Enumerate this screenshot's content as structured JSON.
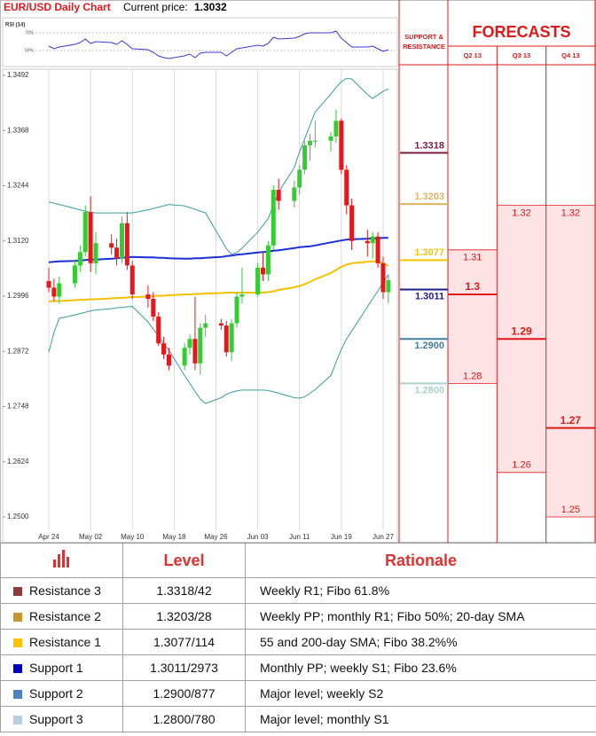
{
  "header": {
    "title": "EUR/USD Daily Chart",
    "price_label": "Current price:",
    "price": 1.3032
  },
  "chart_data": [
    {
      "type": "candlestick",
      "x": [
        "Apr 24",
        "Apr 25",
        "Apr 26",
        "Apr 29",
        "Apr 30",
        "May 01",
        "May 02",
        "May 03",
        "May 06",
        "May 07",
        "May 08",
        "May 09",
        "May 10",
        "May 13",
        "May 14",
        "May 15",
        "May 16",
        "May 17",
        "May 20",
        "May 21",
        "May 22",
        "May 23",
        "May 24",
        "May 27",
        "May 28",
        "May 29",
        "May 30",
        "May 31",
        "Jun 03",
        "Jun 04",
        "Jun 05",
        "Jun 06",
        "Jun 07",
        "Jun 10",
        "Jun 11",
        "Jun 12",
        "Jun 13",
        "Jun 14",
        "Jun 17",
        "Jun 18",
        "Jun 19",
        "Jun 20",
        "Jun 21",
        "Jun 24",
        "Jun 25",
        "Jun 26",
        "Jun 27",
        "Jun 28"
      ],
      "open": [
        1.303,
        1.3015,
        1.2995,
        1.3025,
        1.3065,
        1.3095,
        1.3185,
        1.307,
        1.3115,
        1.3105,
        1.308,
        1.316,
        1.3065,
        1.3,
        1.299,
        1.295,
        1.289,
        1.2865,
        1.284,
        1.288,
        1.29,
        1.2845,
        1.2925,
        1.2935,
        1.293,
        1.287,
        1.2935,
        1.2995,
        1.3,
        1.306,
        1.3045,
        1.311,
        1.3235,
        1.321,
        1.324,
        1.328,
        1.3335,
        1.3345,
        1.3345,
        1.3355,
        1.339,
        1.328,
        1.32,
        1.312,
        1.3115,
        1.313,
        1.307,
        1.3005
      ],
      "high": [
        1.306,
        1.3035,
        1.304,
        1.3075,
        1.311,
        1.32,
        1.322,
        1.314,
        1.3135,
        1.3125,
        1.3175,
        1.3185,
        1.3075,
        1.302,
        1.3005,
        1.296,
        1.2905,
        1.288,
        1.289,
        1.291,
        1.2995,
        1.2935,
        1.2955,
        1.2945,
        1.294,
        1.2945,
        1.3005,
        1.306,
        1.307,
        1.3095,
        1.312,
        1.3245,
        1.326,
        1.3255,
        1.329,
        1.3345,
        1.336,
        1.339,
        1.3365,
        1.3415,
        1.3395,
        1.329,
        1.3215,
        1.3145,
        1.314,
        1.314,
        1.3085,
        1.3045
      ],
      "low": [
        1.3005,
        1.2985,
        1.298,
        1.3015,
        1.305,
        1.3085,
        1.305,
        1.3045,
        1.309,
        1.3065,
        1.307,
        1.3055,
        1.299,
        1.297,
        1.294,
        1.2885,
        1.2855,
        1.283,
        1.283,
        1.2865,
        1.283,
        1.282,
        1.2905,
        1.292,
        1.286,
        1.285,
        1.2925,
        1.298,
        1.2995,
        1.303,
        1.303,
        1.31,
        1.319,
        1.3195,
        1.3225,
        1.327,
        1.33,
        1.333,
        1.332,
        1.334,
        1.327,
        1.318,
        1.31,
        1.3085,
        1.308,
        1.306,
        1.299,
        1.298
      ],
      "close": [
        1.3015,
        1.2995,
        1.3025,
        1.3065,
        1.3095,
        1.3185,
        1.307,
        1.3115,
        1.3105,
        1.308,
        1.316,
        1.3065,
        1.3,
        1.299,
        1.295,
        1.289,
        1.2865,
        1.284,
        1.288,
        1.29,
        1.2845,
        1.2925,
        1.2935,
        1.293,
        1.287,
        1.2935,
        1.2995,
        1.3,
        1.306,
        1.3045,
        1.311,
        1.3235,
        1.321,
        1.324,
        1.328,
        1.3335,
        1.3345,
        1.3345,
        1.3355,
        1.339,
        1.328,
        1.32,
        1.312,
        1.3115,
        1.313,
        1.307,
        1.3005,
        1.3032
      ],
      "up_color": "#33cc33",
      "down_color": "#e8161b",
      "lines": [
        {
          "color": "#3a9c9c",
          "width": 1,
          "values": [
            1.3208,
            1.3205,
            1.3202,
            1.3193,
            1.319,
            1.3187,
            1.3184,
            1.3183,
            1.3183,
            1.3183,
            1.3183,
            1.3183,
            1.3183,
            1.319,
            1.3193,
            1.3196,
            1.3199,
            1.3202,
            1.3199,
            1.3195,
            1.3191,
            1.3187,
            1.3183,
            1.3123,
            1.3103,
            1.309,
            1.3094,
            1.3104,
            1.314,
            1.3155,
            1.317,
            1.32,
            1.323,
            1.3285,
            1.332,
            1.335,
            1.338,
            1.341,
            1.345,
            1.3465,
            1.3478,
            1.3485,
            1.3484,
            1.3449,
            1.344,
            1.3448,
            1.3456,
            1.3462
          ]
        },
        {
          "color": "#3a9c9c",
          "width": 1,
          "values": [
            1.287,
            1.2915,
            1.2946,
            1.2954,
            1.2957,
            1.296,
            1.2963,
            1.2965,
            1.2968,
            1.297,
            1.2971,
            1.2972,
            1.2973,
            1.2938,
            1.2922,
            1.2906,
            1.289,
            1.2874,
            1.2818,
            1.28,
            1.2782,
            1.2765,
            1.2755,
            1.2768,
            1.2776,
            1.278,
            1.2783,
            1.2785,
            1.2785,
            1.2785,
            1.2784,
            1.2781,
            1.2778,
            1.2768,
            1.2767,
            1.277,
            1.2778,
            1.2786,
            1.2818,
            1.2848,
            1.2876,
            1.29,
            1.2918,
            1.2972,
            1.299,
            1.3008,
            1.3026,
            1.3044
          ]
        },
        {
          "color": "#f5c000",
          "width": 2,
          "values": [
            1.2984,
            1.2985,
            1.2985,
            1.2987,
            1.2988,
            1.2988,
            1.2989,
            1.2989,
            1.2991,
            1.2992,
            1.2992,
            1.2993,
            1.2994,
            1.2995,
            1.2996,
            1.2997,
            1.2997,
            1.2998,
            1.3,
            1.3,
            1.3001,
            1.3001,
            1.3002,
            1.3003,
            1.3004,
            1.3004,
            1.3004,
            1.3004,
            1.3004,
            1.3004,
            1.3005,
            1.3007,
            1.301,
            1.3016,
            1.3019,
            1.3023,
            1.3028,
            1.3034,
            1.3048,
            1.3055,
            1.3062,
            1.3067,
            1.307,
            1.3073,
            1.3074,
            1.3074,
            1.307,
            1.3064
          ]
        },
        {
          "color": "#1a2fd6",
          "width": 2,
          "values": [
            1.3072,
            1.3073,
            1.3074,
            1.3075,
            1.3076,
            1.3077,
            1.3078,
            1.3078,
            1.308,
            1.3081,
            1.3082,
            1.3083,
            1.3084,
            1.3083,
            1.3083,
            1.3082,
            1.3082,
            1.3081,
            1.308,
            1.308,
            1.3081,
            1.3081,
            1.3082,
            1.3084,
            1.3086,
            1.3087,
            1.3089,
            1.309,
            1.3094,
            1.3095,
            1.3096,
            1.3098,
            1.3099,
            1.3104,
            1.3106,
            1.3107,
            1.3108,
            1.311,
            1.3117,
            1.3119,
            1.3121,
            1.3123,
            1.3124,
            1.3125,
            1.3126,
            1.3126,
            1.3127,
            1.3127
          ]
        }
      ],
      "ylim": [
        1.25,
        1.3492
      ],
      "yticks": [
        1.3492,
        1.3368,
        1.3244,
        {
          "value": 1.312,
          "label": "1.3120"
        },
        1.2996,
        1.2872,
        1.2748,
        1.2624,
        {
          "value": 1.25,
          "label": "1.2500"
        }
      ],
      "xticks": [
        "Apr 24",
        "May 02",
        "May 10",
        "May 18",
        "May 26",
        "Jun 03",
        "Jun 11",
        "Jun 19",
        "Jun 27"
      ],
      "grid": "x"
    },
    {
      "type": "line",
      "title": "RSI (14)",
      "color": "#3b3bd0",
      "x": [
        "Apr 24",
        "Apr 25",
        "Apr 26",
        "Apr 29",
        "Apr 30",
        "May 01",
        "May 02",
        "May 03",
        "May 06",
        "May 07",
        "May 08",
        "May 09",
        "May 10",
        "May 13",
        "May 14",
        "May 15",
        "May 16",
        "May 17",
        "May 20",
        "May 21",
        "May 22",
        "May 23",
        "May 24",
        "May 27",
        "May 28",
        "May 29",
        "May 30",
        "May 31",
        "Jun 03",
        "Jun 04",
        "Jun 05",
        "Jun 06",
        "Jun 07",
        "Jun 10",
        "Jun 11",
        "Jun 12",
        "Jun 13",
        "Jun 14",
        "Jun 17",
        "Jun 18",
        "Jun 19",
        "Jun 20",
        "Jun 21",
        "Jun 24",
        "Jun 25",
        "Jun 26",
        "Jun 27",
        "Jun 28"
      ],
      "values": [
        55,
        52,
        54,
        57,
        59,
        63,
        58,
        60,
        59,
        57,
        61,
        57,
        52,
        51,
        48,
        44,
        42,
        41,
        44,
        46,
        42,
        47,
        48,
        48,
        44,
        48,
        52,
        53,
        56,
        55,
        58,
        65,
        63,
        64,
        66,
        69,
        70,
        70,
        70,
        72,
        64,
        59,
        54,
        54,
        55,
        52,
        49,
        51
      ],
      "ylim": [
        35,
        82
      ],
      "yticks": [
        {
          "value": 70,
          "label": "70%"
        },
        {
          "value": 50,
          "label": "50%"
        }
      ],
      "grid": "y"
    }
  ],
  "forecast_panel": {
    "support_resistance": {
      "title": "SUPPORT & RESISTANCE",
      "values": [
        1.3318,
        1.3203,
        1.3077,
        1.3011,
        1.29,
        1.28
      ],
      "value_labels": [
        "1.3318",
        "1.3203",
        "1.3077",
        "1.3011",
        "1.2900",
        "1.2800"
      ],
      "colors": [
        "#7a1f3d",
        "#e2b25c",
        "#f7c400",
        "#1c1c8c",
        "#3f7fa0",
        "#a9d2cc"
      ]
    },
    "forecasts": {
      "title": "FORECASTS",
      "quarters": [
        "Q2 13",
        "Q3 13",
        "Q4 13"
      ],
      "high": [
        1.31,
        1.32,
        1.32
      ],
      "mid": [
        1.3,
        1.29,
        1.27
      ],
      "low": [
        1.28,
        1.26,
        1.25
      ],
      "color": "#e01818",
      "fill": "#fde3e3"
    }
  },
  "table": {
    "header": [
      "Level",
      "Rationale"
    ],
    "colors": [
      "#8e3b3b",
      "#c8922e",
      "#ffc000",
      "#0000c0",
      "#4f81bd",
      "#b8cce4"
    ],
    "rows": [
      [
        "Resistance 3",
        "1.3318/42",
        "Weekly R1; Fibo 61.8%"
      ],
      [
        "Resistance 2",
        "1.3203/28",
        "Weekly PP; monthly R1; Fibo 50%; 20-day SMA"
      ],
      [
        "Resistance 1",
        "1.3077/114",
        "55 and 200-day SMA; Fibo 38.2%%"
      ],
      [
        "Support 1",
        "1.3011/2973",
        "Monthly PP; weekly S1; Fibo 23.6%"
      ],
      [
        "Support 2",
        "1.2900/877",
        "Major level; weekly S2"
      ],
      [
        "Support 3",
        "1.2800/780",
        "Major level; monthly S1"
      ]
    ]
  }
}
